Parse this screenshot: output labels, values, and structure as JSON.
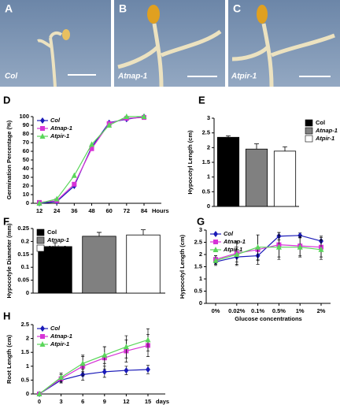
{
  "images": [
    {
      "label": "A",
      "caption": "Col"
    },
    {
      "label": "B",
      "caption": "Atnap-1"
    },
    {
      "label": "C",
      "caption": "Atpir-1"
    }
  ],
  "chart_data": [
    {
      "type": "line",
      "panel": "D",
      "ylabel": "Germination Percentage (%)",
      "x_unit": "Hours",
      "categories": [
        "12",
        "24",
        "36",
        "48",
        "60",
        "72",
        "84"
      ],
      "ylim": [
        0,
        100
      ],
      "yticks": [
        0,
        10,
        20,
        30,
        40,
        50,
        60,
        70,
        80,
        90,
        100
      ],
      "legend": "upper left",
      "series": [
        {
          "name": "Col",
          "color": "#1a1ab8",
          "marker": "diamond",
          "values": [
            0,
            2,
            20,
            65,
            93,
            97,
            100
          ]
        },
        {
          "name": "Atnap-1",
          "color": "#d633d6",
          "marker": "square",
          "values": [
            1,
            3,
            22,
            63,
            92,
            98,
            99
          ]
        },
        {
          "name": "Atpir-1",
          "color": "#5ad65a",
          "marker": "triangle",
          "values": [
            0,
            5,
            32,
            68,
            90,
            100,
            100
          ]
        }
      ]
    },
    {
      "type": "bar",
      "panel": "E",
      "ylabel": "Hypocotyl  Length (cm)",
      "ylim": [
        0,
        3
      ],
      "yticks": [
        0,
        0.5,
        1,
        1.5,
        2,
        2.5,
        3
      ],
      "legend": "right",
      "series": [
        {
          "name": "Col",
          "color": "#000000",
          "values": [
            2.35
          ],
          "errors": [
            0.05
          ]
        },
        {
          "name": "Atnap-1",
          "color": "#808080",
          "values": [
            1.95
          ],
          "errors": [
            0.18
          ]
        },
        {
          "name": "Atpir-1",
          "color": "#ffffff",
          "values": [
            1.88
          ],
          "errors": [
            0.15
          ]
        }
      ]
    },
    {
      "type": "bar",
      "panel": "F",
      "ylabel": "Hypocotyle Diameter (mm)",
      "ylim": [
        0,
        0.25
      ],
      "yticks": [
        0,
        0.05,
        0.1,
        0.15,
        0.2,
        0.25
      ],
      "legend": "upper left",
      "series": [
        {
          "name": "Col",
          "color": "#000000",
          "values": [
            0.18
          ],
          "errors": [
            0.015
          ]
        },
        {
          "name": "Atnap-1",
          "color": "#808080",
          "values": [
            0.22
          ],
          "errors": [
            0.015
          ]
        },
        {
          "name": "Atpir-1",
          "color": "#ffffff",
          "values": [
            0.225
          ],
          "errors": [
            0.02
          ]
        }
      ]
    },
    {
      "type": "line",
      "panel": "G",
      "ylabel": "Hypocotyl Length (cm)",
      "xlabel": "Glucose concentrations",
      "categories": [
        "0%",
        "0.02%",
        "0.1%",
        "0.5%",
        "1%",
        "2%"
      ],
      "ylim": [
        0,
        3
      ],
      "yticks": [
        0,
        0.5,
        1,
        1.5,
        2,
        2.5,
        3
      ],
      "legend": "upper left",
      "series": [
        {
          "name": "Col",
          "color": "#1a1ab8",
          "marker": "diamond",
          "values": [
            1.7,
            1.9,
            1.95,
            2.75,
            2.78,
            2.55
          ],
          "errors": [
            0.1,
            0.3,
            0.2,
            0.15,
            0.1,
            0.2
          ]
        },
        {
          "name": "Atnap-1",
          "color": "#d633d6",
          "marker": "square",
          "values": [
            1.8,
            2.05,
            2.2,
            2.4,
            2.35,
            2.3
          ],
          "errors": [
            0.15,
            0.5,
            0.6,
            0.5,
            0.4,
            0.4
          ]
        },
        {
          "name": "Atpir-1",
          "color": "#5ad65a",
          "marker": "triangle",
          "values": [
            1.75,
            2,
            2.3,
            2.3,
            2.3,
            2.2
          ],
          "errors": [
            0.2,
            0.3,
            0.5,
            0.5,
            0.4,
            0.4
          ]
        }
      ]
    },
    {
      "type": "line",
      "panel": "H",
      "ylabel": "Root Length (cm)",
      "x_unit": "days",
      "categories": [
        "0",
        "3",
        "6",
        "9",
        "12",
        "15"
      ],
      "ylim": [
        0,
        2.5
      ],
      "yticks": [
        0,
        0.5,
        1,
        1.5,
        2,
        2.5
      ],
      "legend": "upper left",
      "series": [
        {
          "name": "Col",
          "color": "#1a1ab8",
          "marker": "diamond",
          "values": [
            0,
            0.5,
            0.7,
            0.8,
            0.85,
            0.88
          ],
          "errors": [
            0,
            0.1,
            0.2,
            0.2,
            0.15,
            0.15
          ]
        },
        {
          "name": "Atnap-1",
          "color": "#d633d6",
          "marker": "square",
          "values": [
            0,
            0.55,
            1,
            1.3,
            1.55,
            1.75
          ],
          "errors": [
            0,
            0.15,
            0.35,
            0.4,
            0.4,
            0.4
          ]
        },
        {
          "name": "Atpir-1",
          "color": "#5ad65a",
          "marker": "triangle",
          "values": [
            0,
            0.6,
            1.1,
            1.4,
            1.7,
            1.95
          ],
          "errors": [
            0,
            0.15,
            0.3,
            0.3,
            0.4,
            0.4
          ]
        }
      ]
    }
  ]
}
